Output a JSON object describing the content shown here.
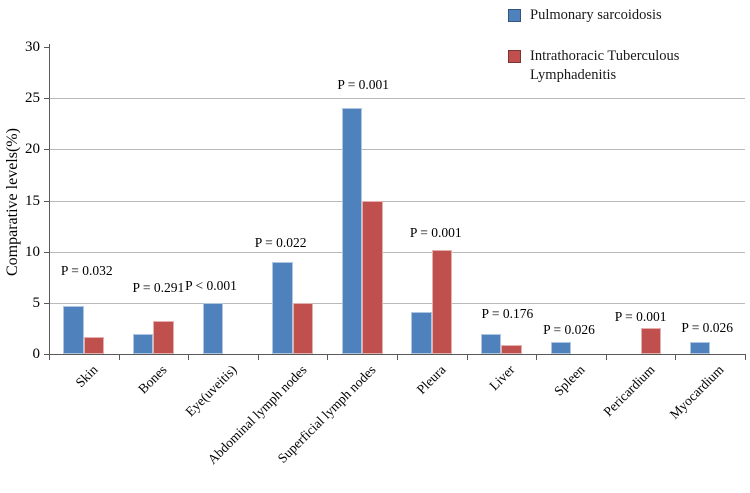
{
  "figure": {
    "kind": "grouped-bar-chart-figure"
  },
  "legend": {
    "position": "top-right",
    "items": [
      {
        "label": "Pulmonary sarcoidosis",
        "color": "#4F81BD"
      },
      {
        "label": "Intrathoracic Tuberculous Lymphadenitis",
        "color": "#C0504D"
      }
    ]
  },
  "chart_data": {
    "type": "bar",
    "title": "",
    "xlabel": "",
    "ylabel": "Comparative levels(%)",
    "ylim": [
      0,
      30
    ],
    "yticks": [
      0,
      5,
      10,
      15,
      20,
      25,
      30
    ],
    "grid": "horizontal gridlines at 5,10,15,20,25",
    "legend_position": "top-right",
    "categories": [
      "Skin",
      "Bones",
      "Eye(uveitis)",
      "Abdominal lymph nodes",
      "Superficial lymph nodes",
      "Pleura",
      "Liver",
      "Spleen",
      "Pericardium",
      "Myocardium"
    ],
    "series": [
      {
        "name": "Pulmonary sarcoidosis",
        "color": "#4F81BD",
        "values": [
          4.7,
          2.0,
          5.0,
          9.0,
          24.0,
          4.1,
          2.0,
          1.2,
          0,
          1.2
        ]
      },
      {
        "name": "Intrathoracic Tuberculous Lymphadenitis",
        "color": "#C0504D",
        "values": [
          1.7,
          3.2,
          0,
          5.0,
          15.0,
          10.2,
          0.9,
          0,
          2.5,
          0
        ]
      }
    ],
    "annotations": {
      "p_values": [
        "P = 0.032",
        "P = 0.291",
        "P < 0.001",
        "P = 0.022",
        "P = 0.001",
        "P = 0.001",
        "P = 0.176",
        "P = 0.026",
        "P = 0.001",
        "P = 0.026"
      ]
    },
    "colors": {
      "gridline": "#b9b9b9",
      "axis": "#595959",
      "text": "#000000"
    }
  }
}
